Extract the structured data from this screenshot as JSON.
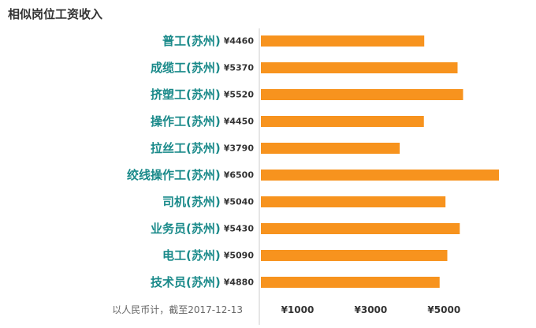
{
  "title": "相似岗位工资收入",
  "footnote": "以人民币计，截至2017-12-13",
  "colors": {
    "bar": "#f7931e",
    "category_label": "#1a8a8a",
    "salary_label": "#333333",
    "tick_label": "#333333",
    "footnote": "#666666",
    "axis_line": "#cccccc"
  },
  "chart_data": {
    "type": "bar",
    "orientation": "horizontal",
    "title": "相似岗位工资收入",
    "categories": [
      "普工(苏州)",
      "成缆工(苏州)",
      "挤塑工(苏州)",
      "操作工(苏州)",
      "拉丝工(苏州)",
      "绞线操作工(苏州)",
      "司机(苏州)",
      "业务员(苏州)",
      "电工(苏州)",
      "技术员(苏州)"
    ],
    "value_labels": [
      "¥4460",
      "¥5370",
      "¥5520",
      "¥4450",
      "¥3790",
      "¥6500",
      "¥5040",
      "¥5430",
      "¥5090",
      "¥4880"
    ],
    "values": [
      4460,
      5370,
      5520,
      4450,
      3790,
      6500,
      5040,
      5430,
      5090,
      4880
    ],
    "x_ticks": [
      1000,
      3000,
      5000
    ],
    "x_tick_labels": [
      "¥1000",
      "¥3000",
      "¥5000"
    ],
    "xlim": [
      0,
      6500
    ],
    "grid": false,
    "legend": "none"
  }
}
